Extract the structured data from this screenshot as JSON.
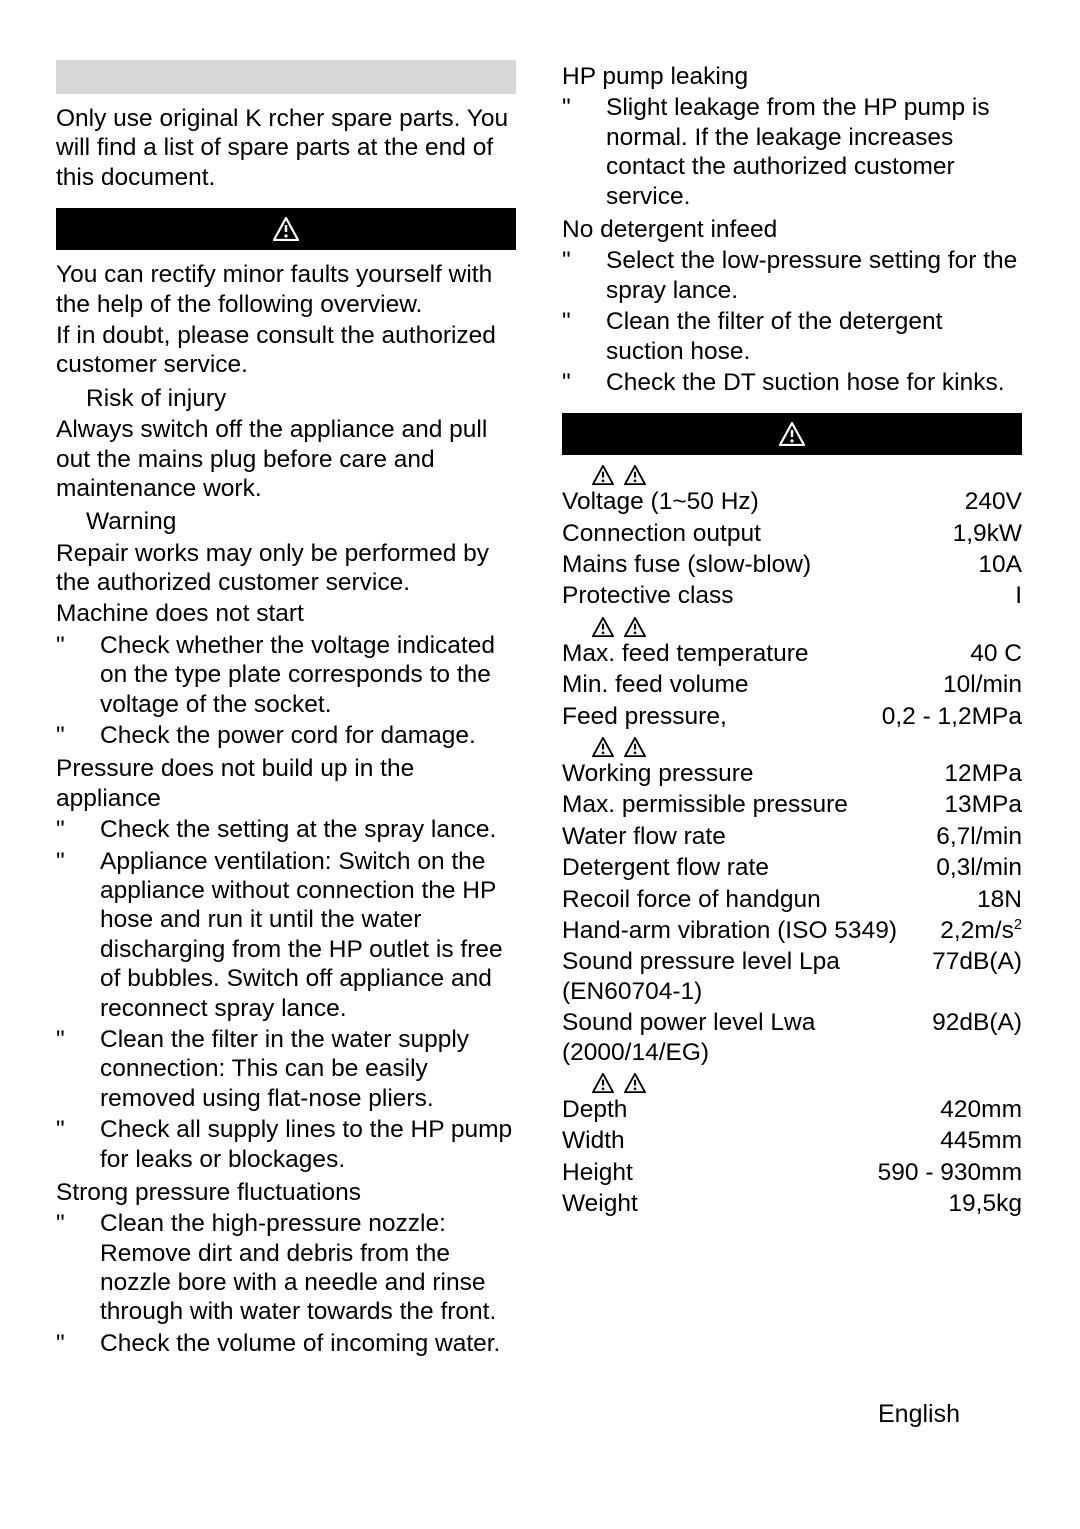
{
  "left": {
    "spare_parts": "Only use original K rcher spare parts. You will find a list of spare parts at the end of this document.",
    "ts_intro1": "You can rectify minor faults yourself with the help of the following overview.",
    "ts_intro2": "If in doubt, please consult the authorized customer service.",
    "risk_label": "Risk of injury",
    "risk_text": "Always switch off the appliance and pull out the mains plug before care and maintenance work.",
    "warning_label": "Warning",
    "warning_text": "Repair works may only be performed by the authorized customer service.",
    "p1_h": "Machine does not start",
    "p1_items": [
      "Check whether the voltage indicated on the type plate corresponds to the voltage of the socket.",
      "Check the power cord for damage."
    ],
    "p2_h": "Pressure does not build up in the appliance",
    "p2_items": [
      "Check the setting at the spray lance.",
      "Appliance ventilation: Switch on the appliance without connection the HP hose and run it until the water discharging from the HP outlet is free of bubbles. Switch off appliance and reconnect spray lance.",
      "Clean the filter in the water supply connection: This can be easily removed using flat-nose pliers.",
      "Check all supply lines to the HP pump for leaks or blockages."
    ],
    "p3_h": "Strong pressure fluctuations",
    "p3_items": [
      "Clean the high-pressure nozzle: Remove dirt and debris from the nozzle bore with a needle and rinse through with water towards the front.",
      "Check the volume of incoming water."
    ]
  },
  "right": {
    "p4_h": "HP pump leaking",
    "p4_items": [
      "Slight leakage from the HP pump is normal. If the leakage increases contact the authorized customer service."
    ],
    "p5_h": "No detergent infeed",
    "p5_items": [
      "Select the low-pressure setting for the spray lance.",
      "Clean the filter of the detergent suction hose.",
      "Check the DT suction hose for kinks."
    ],
    "spec_sections": [
      {
        "icons": true,
        "rows": [
          {
            "label": "Voltage (1~50 Hz)",
            "num": "240",
            "unit": "V"
          },
          {
            "label": "Connection output",
            "num": "1,9",
            "unit": "kW"
          },
          {
            "label": "Mains fuse (slow-blow)",
            "num": "10",
            "unit": "A"
          },
          {
            "label": "Protective class",
            "num": "",
            "unit": "I"
          }
        ]
      },
      {
        "icons": true,
        "rows": [
          {
            "label": "Max. feed temperature",
            "num": "40",
            "unit": " C"
          },
          {
            "label": "Min. feed volume",
            "num": "10",
            "unit": "l/min"
          },
          {
            "label": "Feed pressure,",
            "num": "0,2 - 1,2",
            "unit": "MPa"
          }
        ]
      },
      {
        "icons": true,
        "rows": [
          {
            "label": "Working pressure",
            "num": "12",
            "unit": "MPa"
          },
          {
            "label": "Max. permissible pressure",
            "num": "13",
            "unit": "MPa"
          },
          {
            "label": "Water flow rate",
            "num": "6,7",
            "unit": "l/min"
          },
          {
            "label": "Detergent flow rate",
            "num": "0,3",
            "unit": "l/min"
          },
          {
            "label": "Recoil force of handgun",
            "num": "18",
            "unit": "N"
          },
          {
            "label": "Hand-arm vibration (ISO 5349)",
            "num": "2,2",
            "unit": "m/s²"
          },
          {
            "label": "Sound pressure level Lpa (EN60704-1)",
            "num": "77",
            "unit": "dB(A)"
          },
          {
            "label": "Sound power level Lwa (2000/14/EG)",
            "num": "92",
            "unit": "dB(A)"
          }
        ]
      },
      {
        "icons": true,
        "rows": [
          {
            "label": "Depth",
            "num": "420",
            "unit": "mm"
          },
          {
            "label": "Width",
            "num": "445",
            "unit": "mm"
          },
          {
            "label": "Height",
            "num": "590 - 930",
            "unit": "mm"
          },
          {
            "label": "Weight",
            "num": "19,5",
            "unit": "kg"
          }
        ]
      }
    ]
  },
  "footer": "English",
  "style": {
    "grey_bar": "#d7d7d7",
    "black": "#000000",
    "white": "#ffffff",
    "warn_icon_size": 26
  }
}
